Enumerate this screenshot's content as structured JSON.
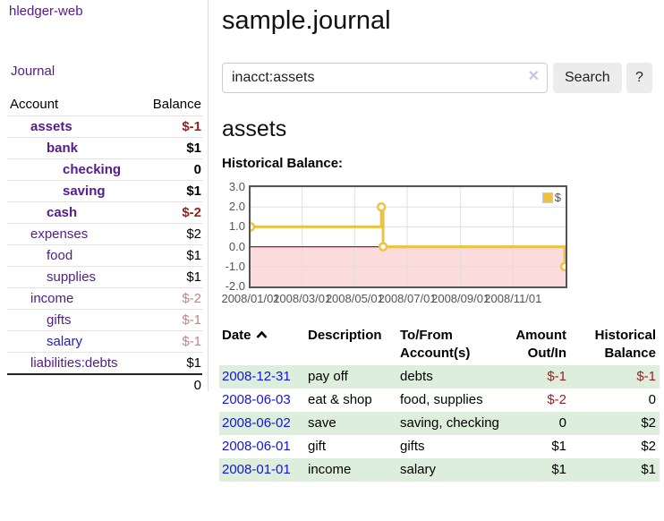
{
  "app_title": "hledger-web",
  "nav": {
    "journal": "Journal"
  },
  "accounts_panel": {
    "col_account": "Account",
    "col_balance": "Balance",
    "rows": [
      {
        "name": "assets",
        "balance": "$-1",
        "depth": 1,
        "bold": true,
        "balance_style": "neg"
      },
      {
        "name": "bank",
        "balance": "$1",
        "depth": 2,
        "bold": true,
        "balance_style": ""
      },
      {
        "name": "checking",
        "balance": "0",
        "depth": 3,
        "bold": true,
        "balance_style": ""
      },
      {
        "name": "saving",
        "balance": "$1",
        "depth": 3,
        "bold": true,
        "balance_style": ""
      },
      {
        "name": "cash",
        "balance": "$-2",
        "depth": 2,
        "bold": true,
        "balance_style": "neg"
      },
      {
        "name": "expenses",
        "balance": "$2",
        "depth": 1,
        "bold": false,
        "balance_style": ""
      },
      {
        "name": "food",
        "balance": "$1",
        "depth": 2,
        "bold": false,
        "balance_style": ""
      },
      {
        "name": "supplies",
        "balance": "$1",
        "depth": 2,
        "bold": false,
        "balance_style": ""
      },
      {
        "name": "income",
        "balance": "$-2",
        "depth": 1,
        "bold": false,
        "balance_style": "neg-muted"
      },
      {
        "name": "gifts",
        "balance": "$-1",
        "depth": 2,
        "bold": false,
        "balance_style": "neg-muted"
      },
      {
        "name": "salary",
        "balance": "$-1",
        "depth": 2,
        "bold": false,
        "balance_style": "neg-muted",
        "link_blue": true
      },
      {
        "name": "liabilities:debts",
        "balance": "$1",
        "depth": 1,
        "bold": false,
        "balance_style": ""
      }
    ],
    "total": "0"
  },
  "main": {
    "title": "sample.journal",
    "search": {
      "value": "inacct:assets",
      "clear": "✕",
      "button": "Search",
      "help": "?"
    },
    "heading": "assets",
    "chart_title": "Historical Balance:"
  },
  "chart_data": {
    "type": "line",
    "step": true,
    "title": "Historical Balance",
    "series": [
      {
        "name": "$",
        "color": "#edc240",
        "points": [
          {
            "x": "2008-01-01",
            "y": 1
          },
          {
            "x": "2008-06-01",
            "y": 2
          },
          {
            "x": "2008-06-03",
            "y": 0
          },
          {
            "x": "2008-12-31",
            "y": -1
          }
        ]
      }
    ],
    "x_range": [
      "2008-01-01",
      "2009-01-01"
    ],
    "ylim": [
      -2,
      3
    ],
    "y_ticks": [
      {
        "label": "3.0",
        "value": 3
      },
      {
        "label": "2.0",
        "value": 2
      },
      {
        "label": "1.0",
        "value": 1
      },
      {
        "label": "0.0",
        "value": 0
      },
      {
        "label": "-1.0",
        "value": -1
      },
      {
        "label": "-2.0",
        "value": -2
      }
    ],
    "x_ticks": [
      {
        "label": "2008/01/01",
        "date": "2008-01-01"
      },
      {
        "label": "2008/03/01",
        "date": "2008-03-01"
      },
      {
        "label": "2008/05/01",
        "date": "2008-05-01"
      },
      {
        "label": "2008/07/01",
        "date": "2008-07-01"
      },
      {
        "label": "2008/09/01",
        "date": "2008-09-01"
      },
      {
        "label": "2008/11/01",
        "date": "2008-11-01"
      }
    ],
    "grid": true,
    "grid_color": "#e0e0e0",
    "zero_line_color": "#a01b1b",
    "negative_fill": "#fbdbdb",
    "border_color": "#545454",
    "legend": {
      "label": "$",
      "position": "top-right"
    }
  },
  "register": {
    "headers": {
      "date": [
        "Date"
      ],
      "description": [
        "Description"
      ],
      "tofrom": [
        "To/From",
        "Account(s)"
      ],
      "amount": [
        "Amount",
        "Out/In"
      ],
      "balance": [
        "Historical",
        "Balance"
      ]
    },
    "sorted_by_date_asc_icon": "chevron-up",
    "rows": [
      {
        "date": "2008-12-31",
        "description": "pay off",
        "accounts": "debts",
        "amount": "$-1",
        "amount_neg": true,
        "balance": "$-1",
        "balance_neg": true,
        "green": true
      },
      {
        "date": "2008-06-03",
        "description": "eat & shop",
        "accounts": "food, supplies",
        "amount": "$-2",
        "amount_neg": true,
        "balance": "0",
        "balance_neg": false,
        "green": false
      },
      {
        "date": "2008-06-02",
        "description": "save",
        "accounts": "saving, checking",
        "amount": "0",
        "amount_neg": false,
        "balance": "$2",
        "balance_neg": false,
        "green": true
      },
      {
        "date": "2008-06-01",
        "description": "gift",
        "accounts": "gifts",
        "amount": "$1",
        "amount_neg": false,
        "balance": "$2",
        "balance_neg": false,
        "green": false
      },
      {
        "date": "2008-01-01",
        "description": "income",
        "accounts": "salary",
        "amount": "$1",
        "amount_neg": false,
        "balance": "$1",
        "balance_neg": false,
        "green": true
      }
    ]
  },
  "colors": {
    "link_purple": "#551a8b",
    "link_blue": "#1414dc",
    "negative_red": "#9e1d1d",
    "negative_red_muted": "#c28585",
    "row_green": "#ddeedd",
    "series_yellow": "#edc240"
  }
}
